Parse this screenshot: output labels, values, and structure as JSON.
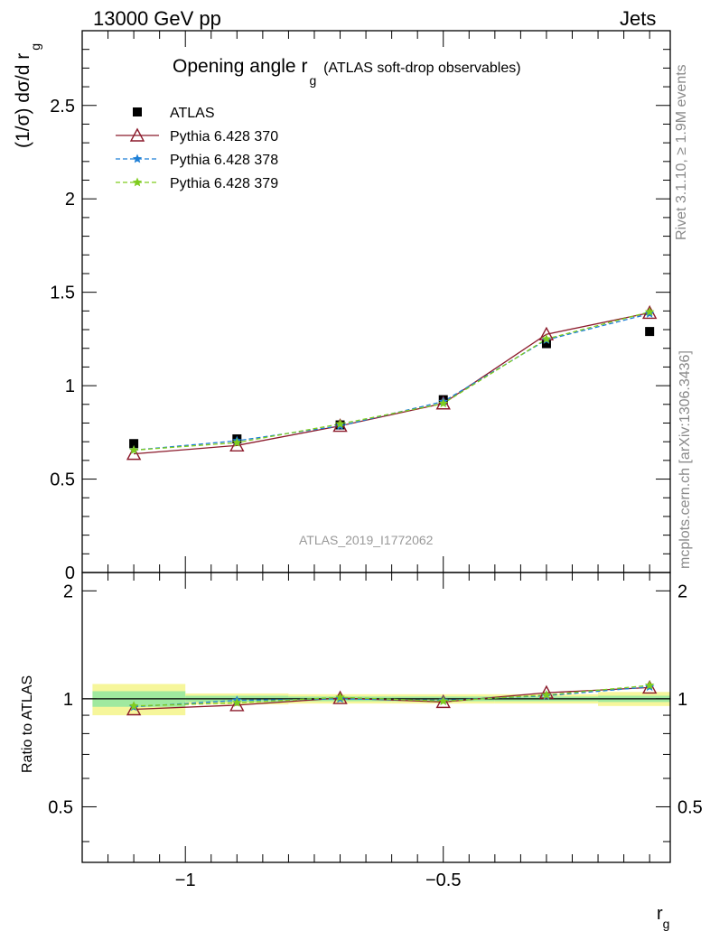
{
  "header": {
    "left": "13000 GeV pp",
    "right": "Jets"
  },
  "side_texts": {
    "rivet": "Rivet 3.1.10, ≥ 1.9M events",
    "mcplots": "mcplots.cern.ch [arXiv:1306.3436]"
  },
  "chart_data": [
    {
      "type": "scatter",
      "panel": "main",
      "title_main": "Opening angle r",
      "title_sub": "g",
      "title_rest": "(ATLAS soft-drop observables)",
      "ylabel": "(1/σ) dσ/d r",
      "ylabel_sub": "g",
      "watermark": "ATLAS_2019_I1772062",
      "xlim": [
        -1.2,
        -0.06
      ],
      "ylim": [
        0,
        2.9
      ],
      "yticks": [
        0,
        0.5,
        1,
        1.5,
        2,
        2.5
      ],
      "ytick_labels": [
        "0",
        "0.5",
        "1",
        "1.5",
        "2",
        "2.5"
      ],
      "x": [
        -1.1,
        -0.9,
        -0.7,
        -0.5,
        -0.3,
        -0.1
      ],
      "legend_position": "top-left",
      "series": [
        {
          "name": "ATLAS",
          "marker": "square",
          "color": "#000000",
          "values": [
            0.69,
            0.715,
            0.79,
            0.925,
            1.225,
            1.29
          ]
        },
        {
          "name": "Pythia 6.428 370",
          "marker": "open-triangle",
          "color": "#8b1a2b",
          "line": "solid",
          "values": [
            0.635,
            0.68,
            0.785,
            0.905,
            1.275,
            1.39
          ]
        },
        {
          "name": "Pythia 6.428 378",
          "marker": "star",
          "color": "#1e7fd6",
          "line": "dashed",
          "values": [
            0.655,
            0.705,
            0.785,
            0.915,
            1.245,
            1.385
          ]
        },
        {
          "name": "Pythia 6.428 379",
          "marker": "star",
          "color": "#7fcc1e",
          "line": "dashed",
          "values": [
            0.655,
            0.695,
            0.795,
            0.905,
            1.25,
            1.395
          ]
        }
      ]
    },
    {
      "type": "scatter",
      "panel": "ratio",
      "ylabel": "Ratio to ATLAS",
      "xlabel": "r",
      "xlabel_sub": "g",
      "xlim": [
        -1.2,
        -0.06
      ],
      "ylim": [
        0.35,
        2.25
      ],
      "yticks": [
        0.5,
        1,
        2
      ],
      "ytick_labels": [
        "0.5",
        "1",
        "2"
      ],
      "xticks": [
        -1,
        -0.5
      ],
      "xtick_labels": [
        "−1",
        "−0.5"
      ],
      "x": [
        -1.1,
        -0.9,
        -0.7,
        -0.5,
        -0.3,
        -0.1
      ],
      "bins": [
        [
          -1.18,
          -1.0
        ],
        [
          -1.0,
          -0.8
        ],
        [
          -0.8,
          -0.6
        ],
        [
          -0.6,
          -0.4
        ],
        [
          -0.4,
          -0.2
        ],
        [
          -0.2,
          -0.06
        ]
      ],
      "band_inner": [
        0.05,
        0.02,
        0.015,
        0.015,
        0.015,
        0.02
      ],
      "band_outer": [
        0.1,
        0.035,
        0.03,
        0.03,
        0.03,
        0.045
      ],
      "series": [
        {
          "name": "Pythia 6.428 370",
          "color": "#8b1a2b",
          "values": [
            0.935,
            0.96,
            1.005,
            0.98,
            1.04,
            1.075
          ]
        },
        {
          "name": "Pythia 6.428 378",
          "color": "#1e7fd6",
          "values": [
            0.95,
            0.99,
            1.0,
            0.99,
            1.02,
            1.08
          ]
        },
        {
          "name": "Pythia 6.428 379",
          "color": "#7fcc1e",
          "values": [
            0.955,
            0.975,
            1.01,
            0.985,
            1.025,
            1.09
          ]
        }
      ]
    }
  ]
}
